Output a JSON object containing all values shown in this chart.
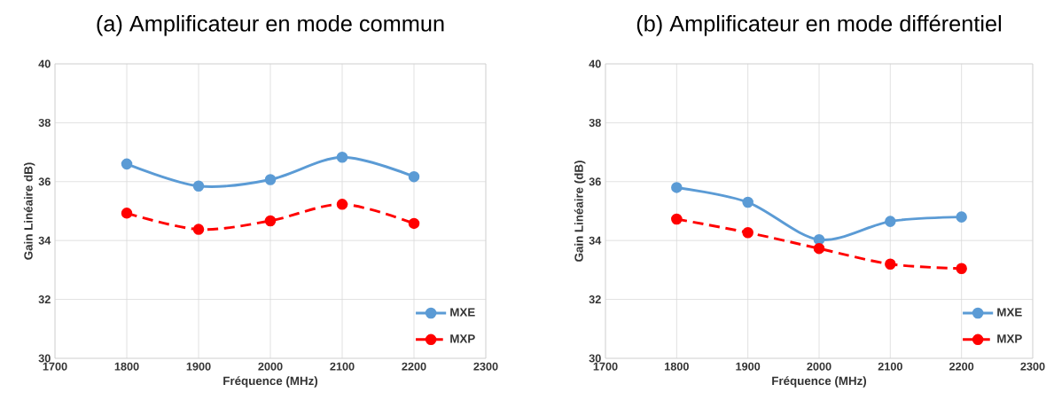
{
  "chart_data": [
    {
      "type": "line",
      "title": "(a) Amplificateur en mode commun",
      "xlabel": "Fréquence (MHz)",
      "ylabel": "Gain Linéaire dB)",
      "x": [
        1800,
        1900,
        2000,
        2100,
        2200
      ],
      "series": [
        {
          "name": "MXE",
          "color": "#5b9bd5",
          "line_style": "solid",
          "values": [
            36.6,
            35.85,
            36.07,
            36.83,
            36.17
          ]
        },
        {
          "name": "MXP",
          "color": "#ff0000",
          "line_style": "dashed",
          "values": [
            34.93,
            34.38,
            34.67,
            35.23,
            34.58
          ]
        }
      ],
      "xlim": [
        1700,
        2300
      ],
      "xticks": [
        1700,
        1800,
        1900,
        2000,
        2100,
        2200,
        2300
      ],
      "ylim": [
        30,
        40
      ],
      "yticks": [
        30,
        32,
        34,
        36,
        38,
        40
      ],
      "grid": true,
      "legend": "bottom right",
      "marker": "circle"
    },
    {
      "type": "line",
      "title": "(b) Amplificateur en mode différentiel",
      "xlabel": "Fréquence (MHz)",
      "ylabel": "Gain Linéaire (dB)",
      "x": [
        1800,
        1900,
        2000,
        2100,
        2200
      ],
      "series": [
        {
          "name": "MXE",
          "color": "#5b9bd5",
          "line_style": "solid",
          "values": [
            35.8,
            35.3,
            34.03,
            34.65,
            34.8
          ]
        },
        {
          "name": "MXP",
          "color": "#ff0000",
          "line_style": "dashed",
          "values": [
            34.73,
            34.27,
            33.73,
            33.2,
            33.05
          ]
        }
      ],
      "xlim": [
        1700,
        2300
      ],
      "xticks": [
        1700,
        1800,
        1900,
        2000,
        2100,
        2200,
        2300
      ],
      "ylim": [
        30,
        40
      ],
      "yticks": [
        30,
        32,
        34,
        36,
        38,
        40
      ],
      "grid": true,
      "legend": "bottom right",
      "marker": "circle"
    }
  ]
}
